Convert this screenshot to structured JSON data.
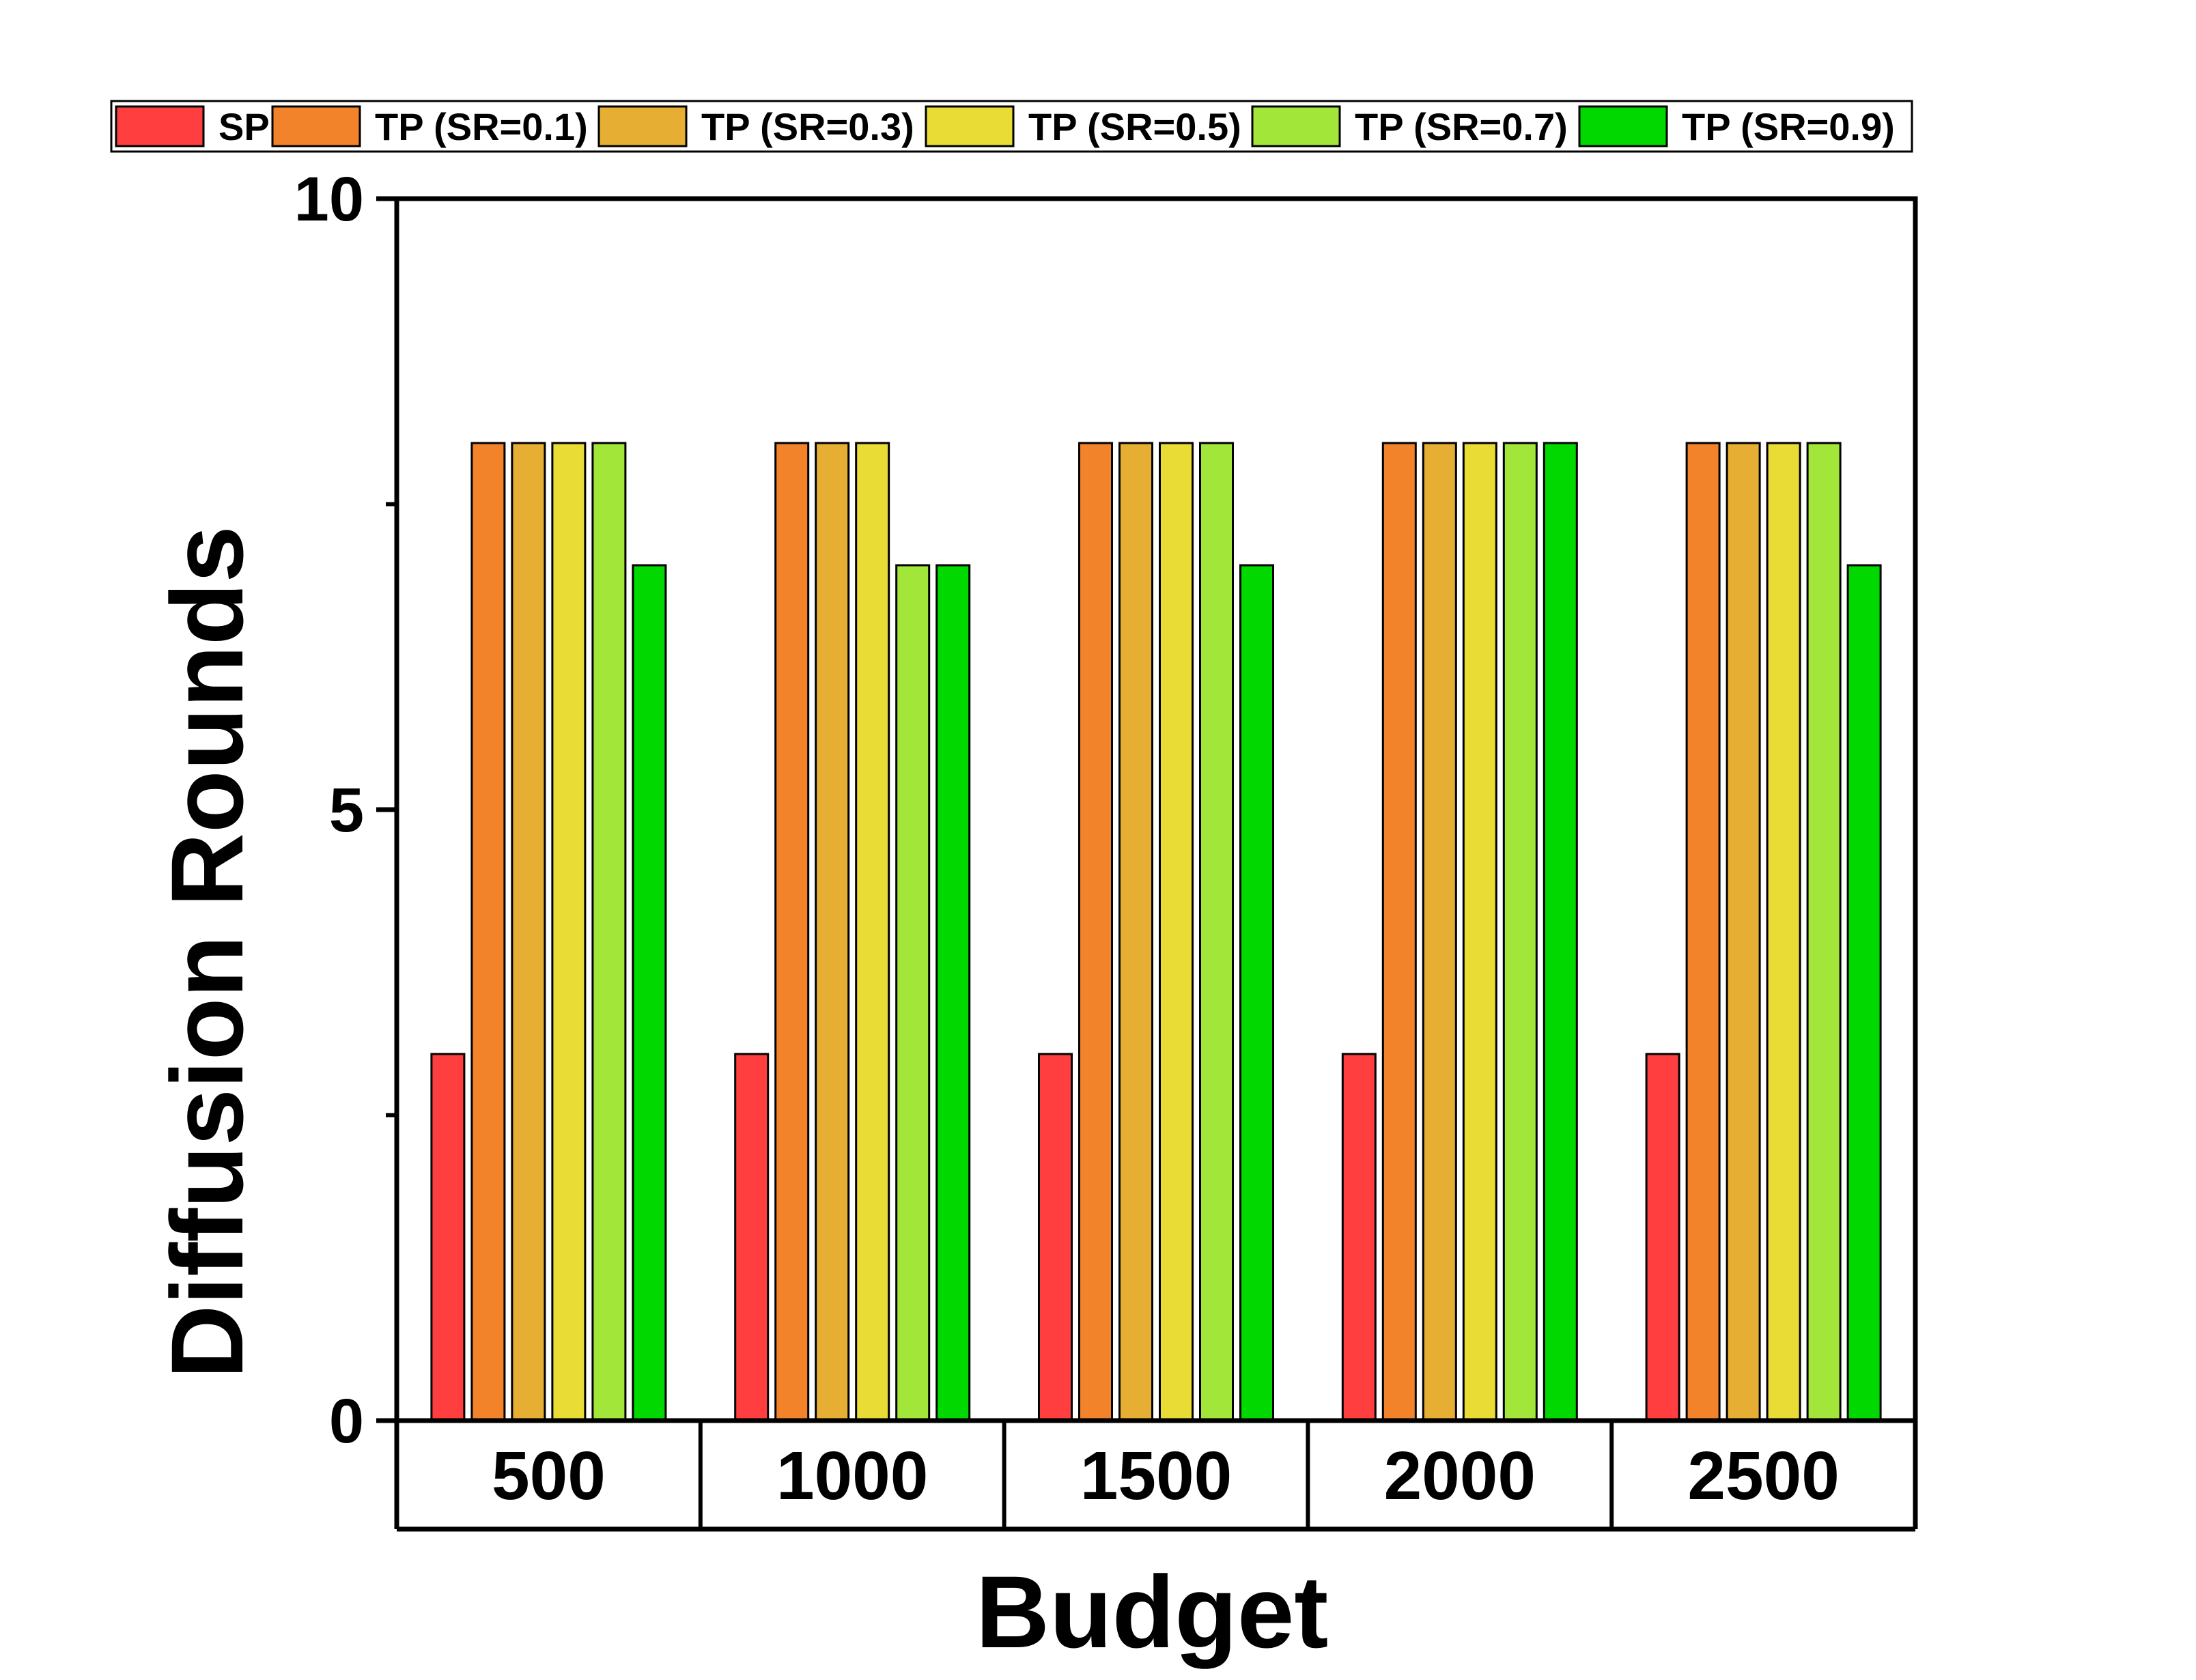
{
  "chart_data": {
    "type": "bar",
    "title": "",
    "xlabel": "Budget",
    "ylabel": "Diffusion Rounds",
    "categories": [
      "500",
      "1000",
      "1500",
      "2000",
      "2500"
    ],
    "ylim": [
      0,
      10
    ],
    "yticks": [
      "0",
      "5",
      "10"
    ],
    "legend_position": "top",
    "series": [
      {
        "name": "SP",
        "color": "#ff3f3f",
        "values": [
          3,
          3,
          3,
          3,
          3
        ]
      },
      {
        "name": "TP (SR=0.1)",
        "color": "#f2832a",
        "values": [
          8,
          8,
          8,
          8,
          8
        ]
      },
      {
        "name": "TP (SR=0.3)",
        "color": "#e6ae33",
        "values": [
          8,
          8,
          8,
          8,
          8
        ]
      },
      {
        "name": "TP (SR=0.5)",
        "color": "#e8dc35",
        "values": [
          8,
          8,
          8,
          8,
          8
        ]
      },
      {
        "name": "TP (SR=0.7)",
        "color": "#a2e63a",
        "values": [
          8,
          7,
          8,
          8,
          8
        ]
      },
      {
        "name": "TP (SR=0.9)",
        "color": "#00d800",
        "values": [
          7,
          7,
          7,
          8,
          7
        ]
      }
    ]
  }
}
